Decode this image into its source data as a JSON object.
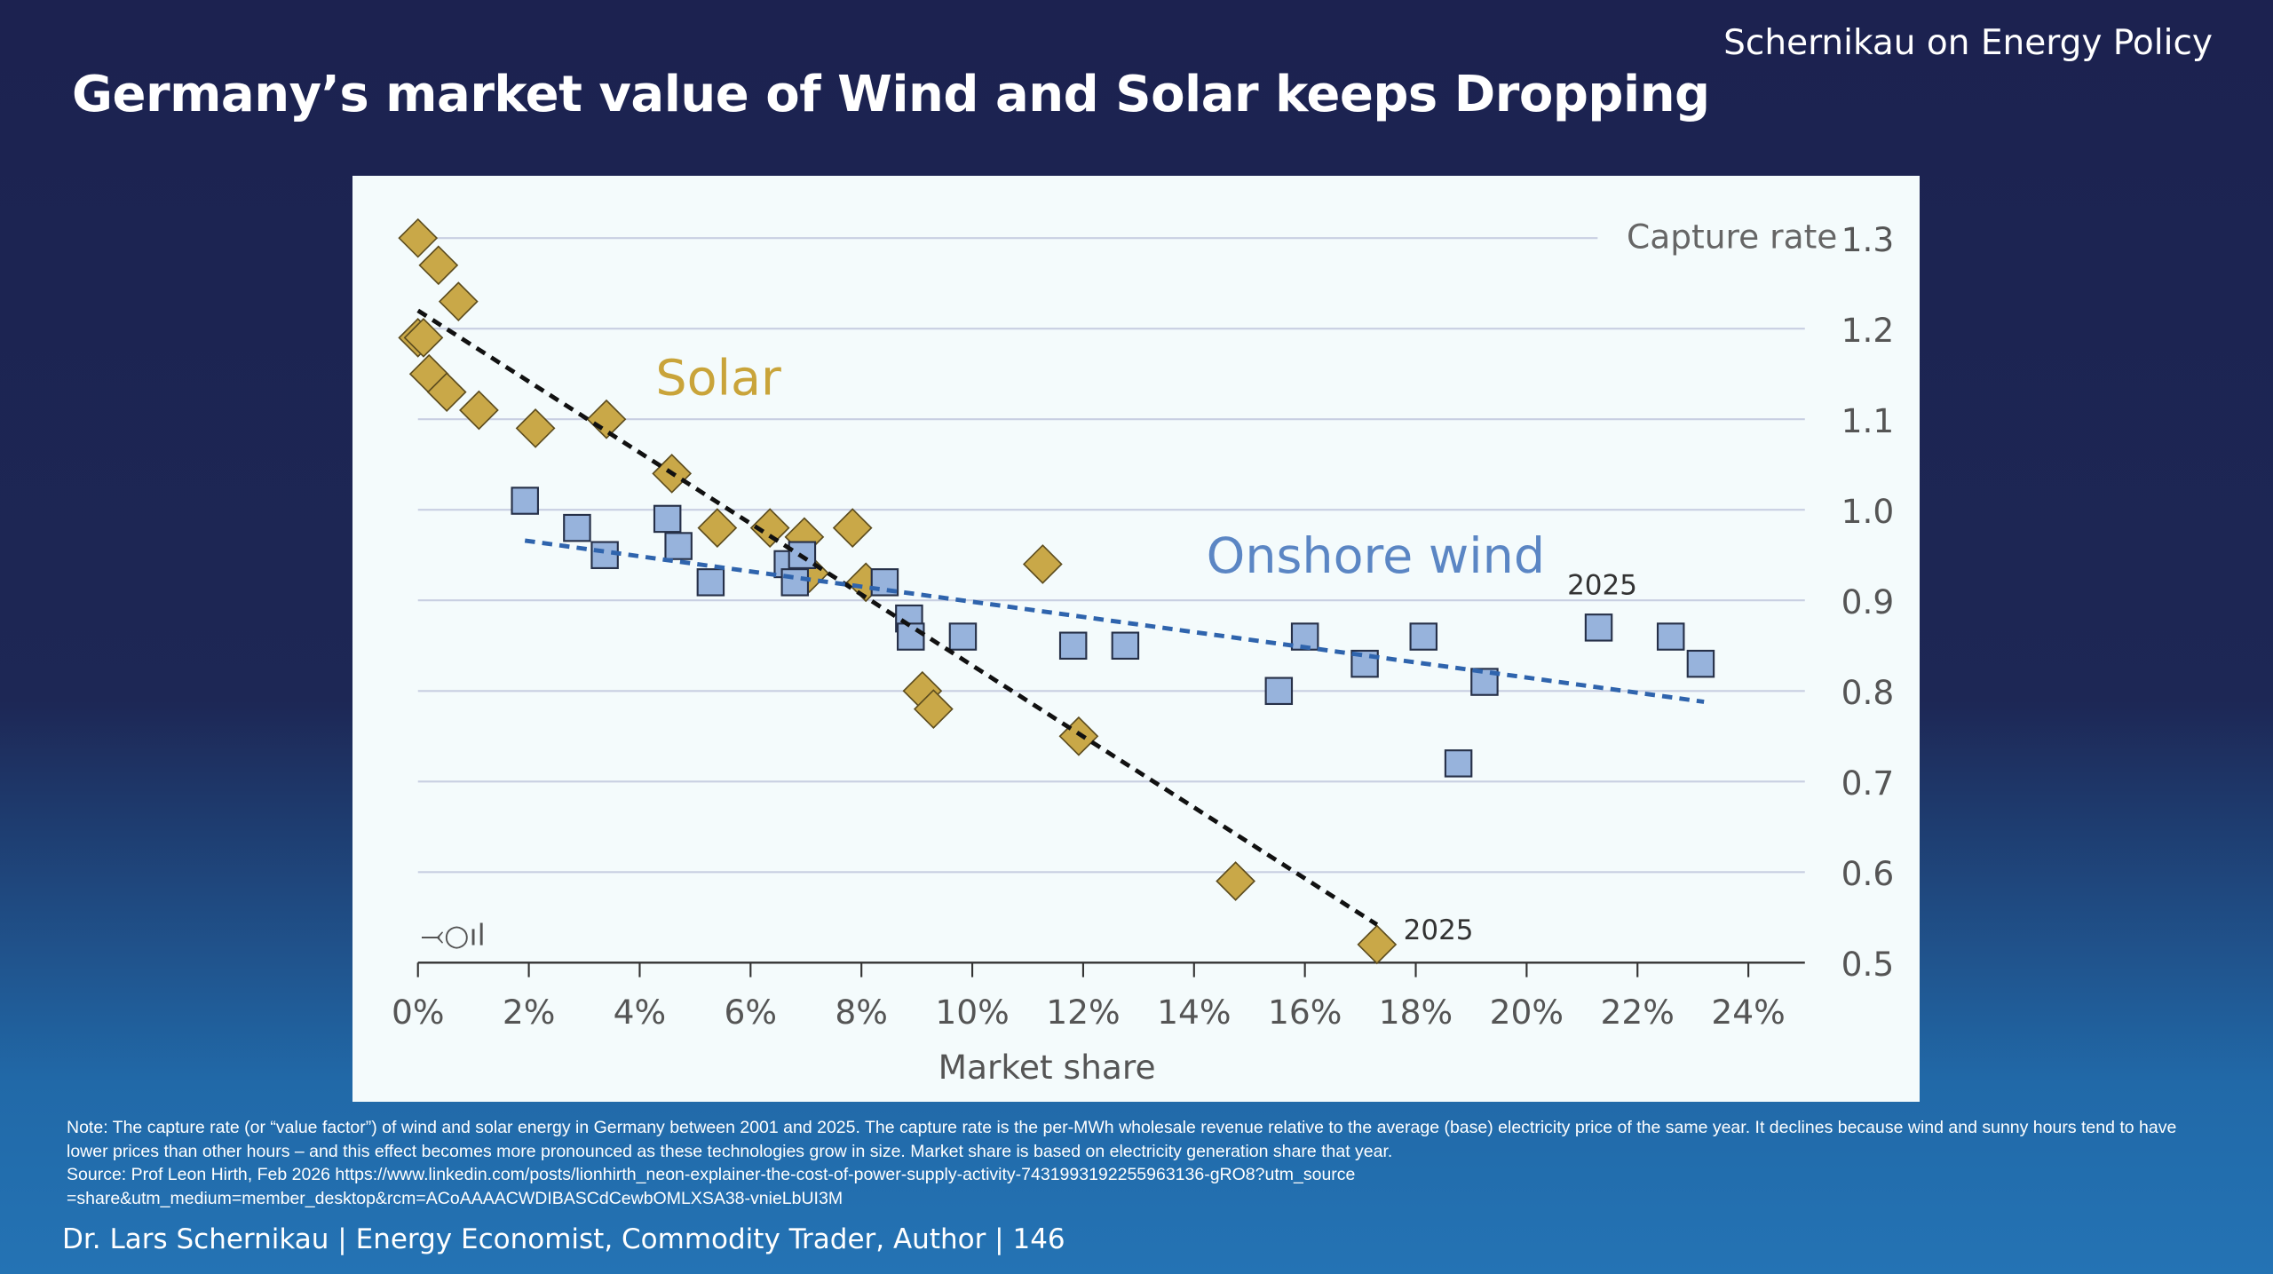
{
  "brand": "Schernikau on Energy Policy",
  "title": "Germany’s market value of Wind and Solar keeps Dropping",
  "note": {
    "line1": "Note: The capture rate (or “value factor”) of wind and solar energy in Germany between 2001 and 2025. The capture rate is the per-MWh wholesale revenue relative to the average (base) electricity price of the same year. It declines because wind and sunny hours tend to have lower prices than other hours – and this effect becomes more pronounced as these technologies grow in size. Market share is based on electricity generation share that year.",
    "source": "Source: Prof Leon Hirth, Feb 2026 https://www.linkedin.com/posts/lionhirth_neon-explainer-the-cost-of-power-supply-activity-7431993192255963136-gRO8?utm_source=share&utm_medium=member_desktop&rcm=ACoAAAACWDIBASCdCewbOMLXSA38-vnieLbUI3M"
  },
  "footer": "Dr. Lars Schernikau | Energy Economist, Commodity Trader, Author | 146",
  "chart_data": {
    "type": "scatter",
    "title": "",
    "xlabel": "Market share",
    "ylabel": "Capture rate",
    "xlim": [
      0,
      24
    ],
    "ylim": [
      0.5,
      1.3
    ],
    "xticks": [
      0,
      2,
      4,
      6,
      8,
      10,
      12,
      14,
      16,
      18,
      20,
      22,
      24
    ],
    "xtick_labels": [
      "0%",
      "2%",
      "4%",
      "6%",
      "8%",
      "10%",
      "12%",
      "14%",
      "16%",
      "18%",
      "20%",
      "22%",
      "24%"
    ],
    "yticks": [
      0.5,
      0.6,
      0.7,
      0.8,
      0.9,
      1.0,
      1.1,
      1.2,
      1.3
    ],
    "ytick_labels": [
      "0.5",
      "0.6",
      "0.7",
      "0.8",
      "0.9",
      "1.0",
      "1.1",
      "1.2",
      "1.3"
    ],
    "grid": true,
    "logo_text": "⤙○ıl",
    "series": [
      {
        "name": "Solar",
        "marker": "diamond",
        "color": "#c9a848",
        "points": [
          [
            0.0,
            1.3
          ],
          [
            0.37,
            1.27
          ],
          [
            0.73,
            1.23
          ],
          [
            0.0,
            1.19
          ],
          [
            0.1,
            1.19
          ],
          [
            0.2,
            1.15
          ],
          [
            0.52,
            1.13
          ],
          [
            1.1,
            1.11
          ],
          [
            2.12,
            1.09
          ],
          [
            3.4,
            1.1
          ],
          [
            4.58,
            1.04
          ],
          [
            5.4,
            0.98
          ],
          [
            6.35,
            0.98
          ],
          [
            6.97,
            0.97
          ],
          [
            7.84,
            0.98
          ],
          [
            7.06,
            0.93
          ],
          [
            8.08,
            0.92
          ],
          [
            9.1,
            0.8
          ],
          [
            9.3,
            0.78
          ],
          [
            11.27,
            0.94
          ],
          [
            11.92,
            0.75
          ],
          [
            14.75,
            0.59
          ],
          [
            17.3,
            0.52
          ]
        ],
        "trend": [
          [
            0,
            1.22
          ],
          [
            17.3,
            0.542
          ]
        ],
        "trend_color": "#111111",
        "label_2025": "2025"
      },
      {
        "name": "Onshore wind",
        "marker": "square",
        "color": "#97b3dc",
        "points": [
          [
            1.93,
            1.01
          ],
          [
            2.87,
            0.98
          ],
          [
            3.37,
            0.95
          ],
          [
            4.5,
            0.99
          ],
          [
            4.7,
            0.96
          ],
          [
            5.28,
            0.92
          ],
          [
            6.67,
            0.94
          ],
          [
            6.8,
            0.92
          ],
          [
            6.93,
            0.95
          ],
          [
            8.42,
            0.92
          ],
          [
            8.86,
            0.88
          ],
          [
            8.89,
            0.86
          ],
          [
            9.83,
            0.86
          ],
          [
            11.82,
            0.85
          ],
          [
            12.76,
            0.85
          ],
          [
            15.53,
            0.8
          ],
          [
            16.0,
            0.86
          ],
          [
            17.08,
            0.83
          ],
          [
            18.14,
            0.86
          ],
          [
            18.77,
            0.72
          ],
          [
            19.24,
            0.81
          ],
          [
            21.3,
            0.87
          ],
          [
            22.6,
            0.86
          ],
          [
            23.14,
            0.83
          ]
        ],
        "trend": [
          [
            1.93,
            0.966
          ],
          [
            23.2,
            0.788
          ]
        ],
        "trend_color": "#2f64ad",
        "label_2025": "2025"
      }
    ]
  }
}
